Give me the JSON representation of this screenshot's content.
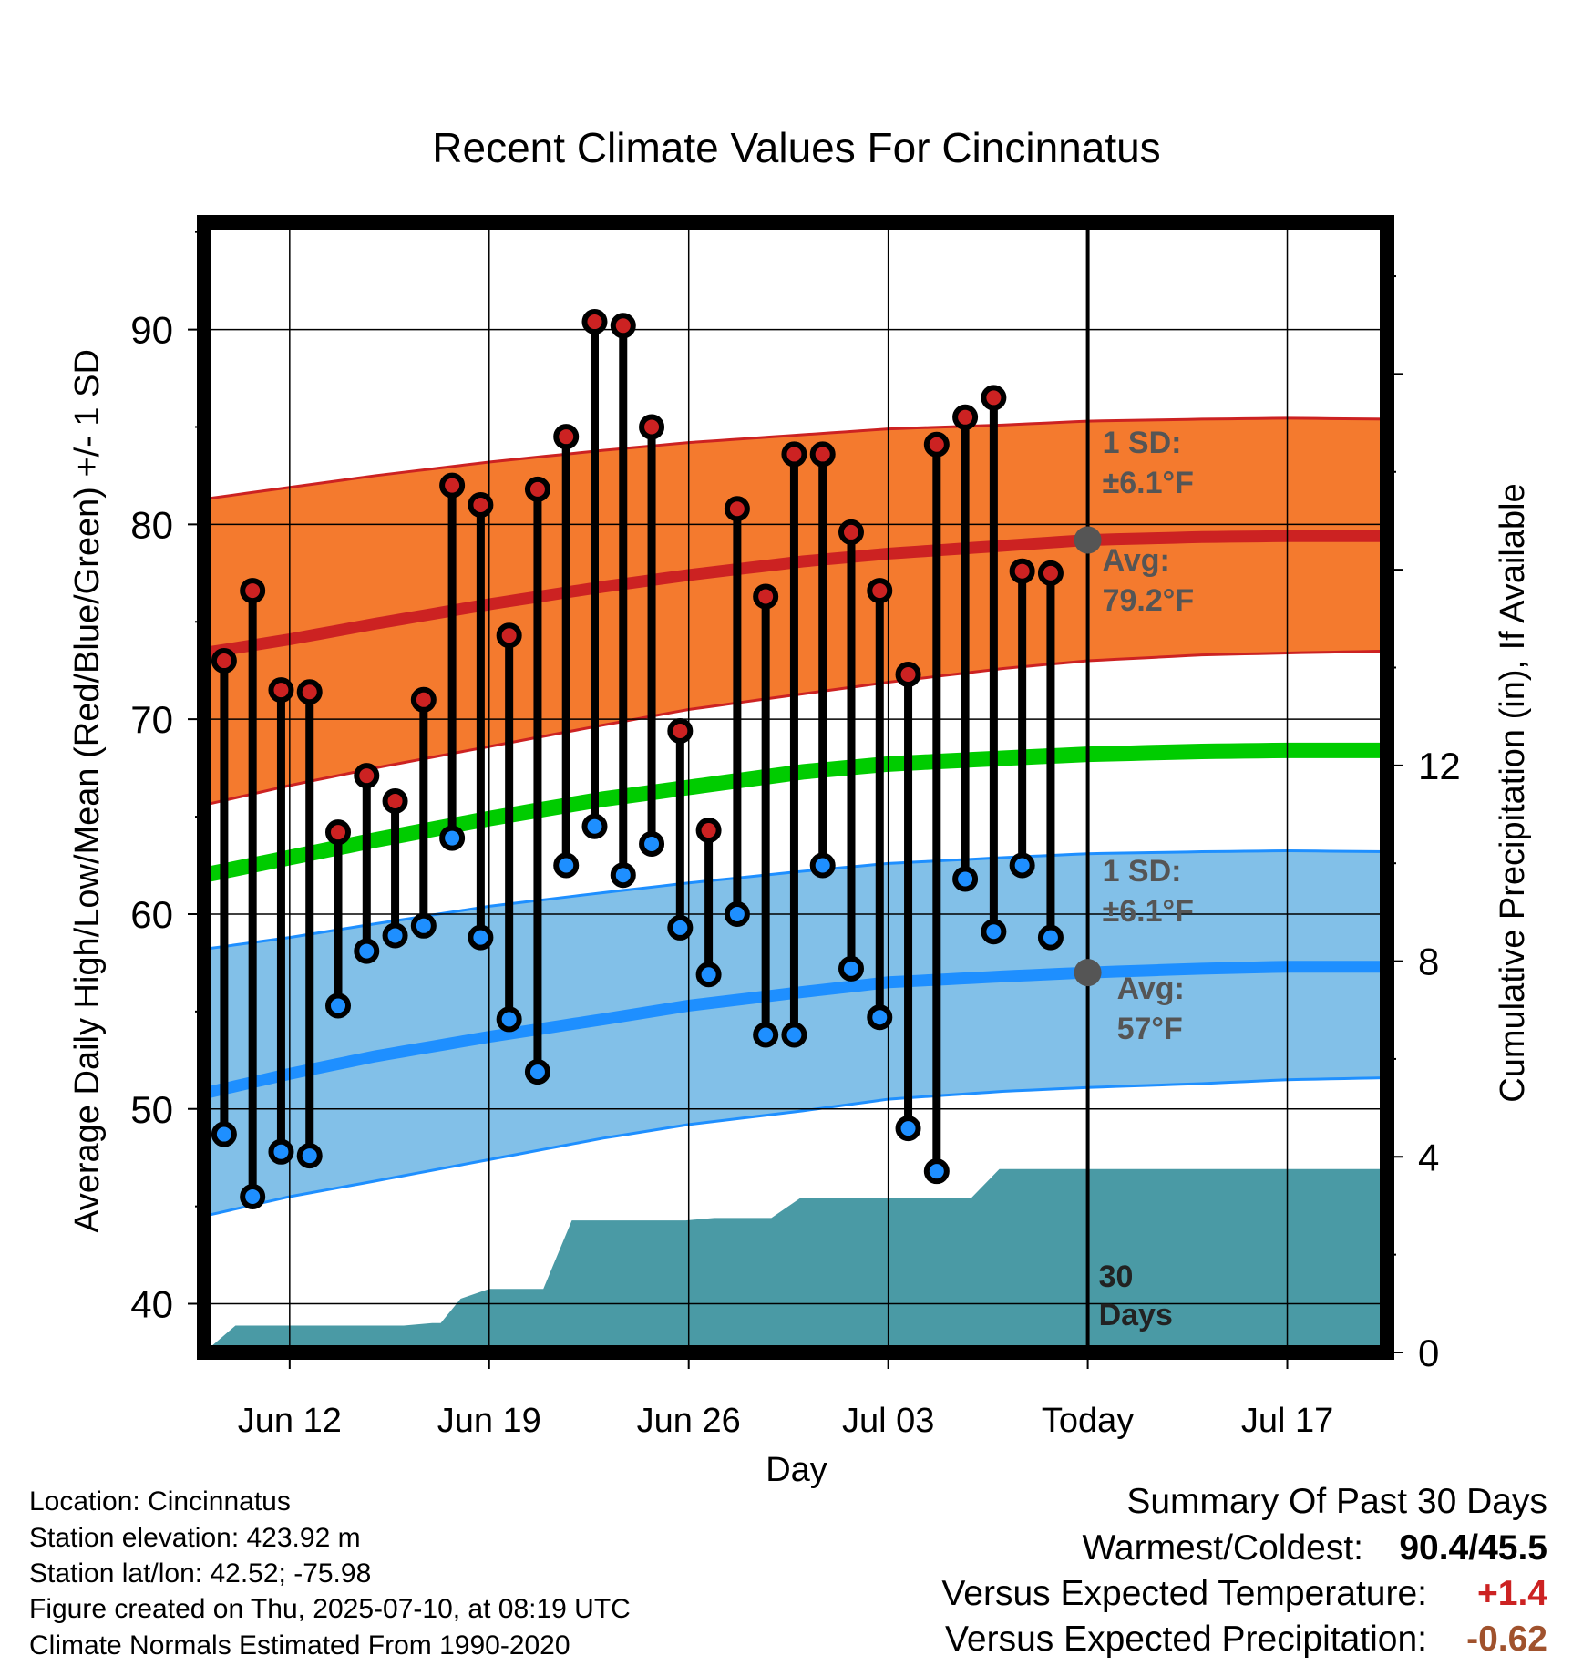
{
  "chart_data": {
    "type": "line",
    "title": "Recent Climate Values For Cincinnatus",
    "xlabel": "Day",
    "ylabel_left": "Average Daily High/Low/Mean (Red/Blue/Green) +/- 1 SD",
    "ylabel_right": "Cumulative Precipitation (in), If Available",
    "ylim_left": [
      37.5,
      95.5
    ],
    "ylim_right": [
      0,
      23.1
    ],
    "yticks_left": [
      "40",
      "50",
      "60",
      "70",
      "80",
      "90"
    ],
    "yticks_right": [
      "0",
      "4",
      "8",
      "12"
    ],
    "xlim_days": [
      0,
      41.5
    ],
    "xticks": [
      {
        "label": "Jun 12",
        "day": 3
      },
      {
        "label": "Jun 19",
        "day": 10
      },
      {
        "label": "Jun 26",
        "day": 17
      },
      {
        "label": "Jul 03",
        "day": 24
      },
      {
        "label": "Today",
        "day": 31
      },
      {
        "label": "Jul 17",
        "day": 38
      }
    ],
    "first_day_date": "Jun 09",
    "today_day": 31,
    "today_label": [
      "30",
      "Days"
    ],
    "observations": {
      "start_day": 0.7,
      "highs": [
        73.0,
        76.6,
        71.5,
        71.4,
        64.2,
        67.1,
        65.8,
        71.0,
        82.0,
        81.0,
        74.3,
        81.8,
        84.5,
        90.4,
        90.2,
        85.0,
        69.4,
        64.3,
        80.8,
        76.3,
        83.6,
        83.6,
        79.6,
        76.6,
        72.3,
        84.1,
        85.5,
        86.5,
        77.6,
        77.5
      ],
      "lows": [
        48.7,
        45.5,
        47.8,
        47.6,
        55.3,
        58.1,
        58.9,
        59.4,
        63.9,
        58.8,
        54.6,
        51.9,
        62.5,
        64.5,
        62.0,
        63.6,
        59.3,
        56.9,
        60.0,
        53.8,
        53.8,
        62.5,
        57.2,
        54.7,
        49.0,
        46.8,
        61.8,
        59.1,
        62.5,
        58.8
      ]
    },
    "normals": {
      "x": [
        0,
        3,
        6,
        10,
        14,
        17,
        21,
        24,
        28,
        31,
        35,
        38,
        41.5
      ],
      "high_mean": [
        73.4,
        74.1,
        74.9,
        75.9,
        76.8,
        77.4,
        78.1,
        78.5,
        78.9,
        79.2,
        79.35,
        79.4,
        79.4
      ],
      "high_upper": [
        81.3,
        81.9,
        82.5,
        83.2,
        83.8,
        84.2,
        84.6,
        84.9,
        85.1,
        85.3,
        85.4,
        85.45,
        85.4
      ],
      "high_lower": [
        65.6,
        66.6,
        67.5,
        68.6,
        69.7,
        70.5,
        71.3,
        71.9,
        72.6,
        73.0,
        73.3,
        73.4,
        73.5
      ],
      "mean": [
        62.0,
        62.9,
        63.8,
        64.9,
        65.9,
        66.5,
        67.3,
        67.7,
        68.0,
        68.2,
        68.35,
        68.4,
        68.4
      ],
      "low_mean": [
        50.8,
        51.8,
        52.7,
        53.7,
        54.6,
        55.3,
        56.0,
        56.5,
        56.8,
        57.0,
        57.2,
        57.3,
        57.3
      ],
      "low_upper": [
        58.2,
        58.8,
        59.5,
        60.4,
        61.1,
        61.6,
        62.2,
        62.6,
        62.9,
        63.1,
        63.2,
        63.25,
        63.2
      ],
      "low_lower": [
        44.5,
        45.5,
        46.3,
        47.4,
        48.5,
        49.2,
        49.9,
        50.5,
        50.9,
        51.1,
        51.3,
        51.5,
        51.6
      ]
    },
    "precipitation": {
      "x": [
        0,
        0.7,
        1.1,
        2,
        3,
        4,
        5,
        6,
        7,
        8,
        8.3,
        9,
        10,
        10.9,
        11.9,
        12.9,
        13.9,
        14.9,
        15.9,
        16.9,
        17.9,
        18.9,
        19.9,
        20.9,
        21.9,
        22.9,
        23.9,
        24.9,
        25.9,
        26.9,
        27.9,
        28.9,
        29.9,
        30.9,
        31,
        35,
        38,
        41.5
      ],
      "y": [
        0,
        0.35,
        0.55,
        0.55,
        0.55,
        0.55,
        0.55,
        0.55,
        0.55,
        0.6,
        0.6,
        1.1,
        1.3,
        1.3,
        1.3,
        2.7,
        2.7,
        2.7,
        2.7,
        2.7,
        2.75,
        2.75,
        2.75,
        3.15,
        3.15,
        3.15,
        3.15,
        3.15,
        3.15,
        3.15,
        3.75,
        3.75,
        3.75,
        3.75,
        3.75,
        3.75,
        3.75,
        3.75
      ]
    },
    "annotations": {
      "high_sd": [
        "1 SD:",
        "±6.1°F"
      ],
      "high_avg": [
        "Avg:",
        "79.2°F"
      ],
      "low_sd": [
        "1 SD:",
        "±6.1°F"
      ],
      "low_avg": [
        "Avg:",
        "57°F"
      ]
    },
    "colors": {
      "high_band": "#f47a2e",
      "high_line": "#cc2222",
      "mean_line": "#00cc00",
      "low_band": "#82c0e8",
      "low_line": "#1e8fff",
      "precip": "#4a9aa5",
      "high_dot": "#cc2222",
      "low_dot": "#1e8fff",
      "annotation": "#555555"
    }
  },
  "footer": {
    "location": "Location: Cincinnatus",
    "elevation": "Station elevation: 423.92 m",
    "latlon": "Station lat/lon: 42.52; -75.98",
    "created": "Figure created on Thu, 2025-07-10, at 08:19 UTC",
    "normals": "Climate Normals Estimated From 1990-2020"
  },
  "summary": {
    "heading": "Summary Of Past 30 Days",
    "warmest_coldest_label": "Warmest/Coldest:",
    "warmest_coldest_value": "90.4/45.5",
    "temp_label": "Versus Expected Temperature:",
    "temp_value": "+1.4",
    "precip_label": "Versus Expected Precipitation:",
    "precip_value": "-0.62",
    "temp_color": "#cc2222",
    "precip_color": "#a0522d"
  }
}
